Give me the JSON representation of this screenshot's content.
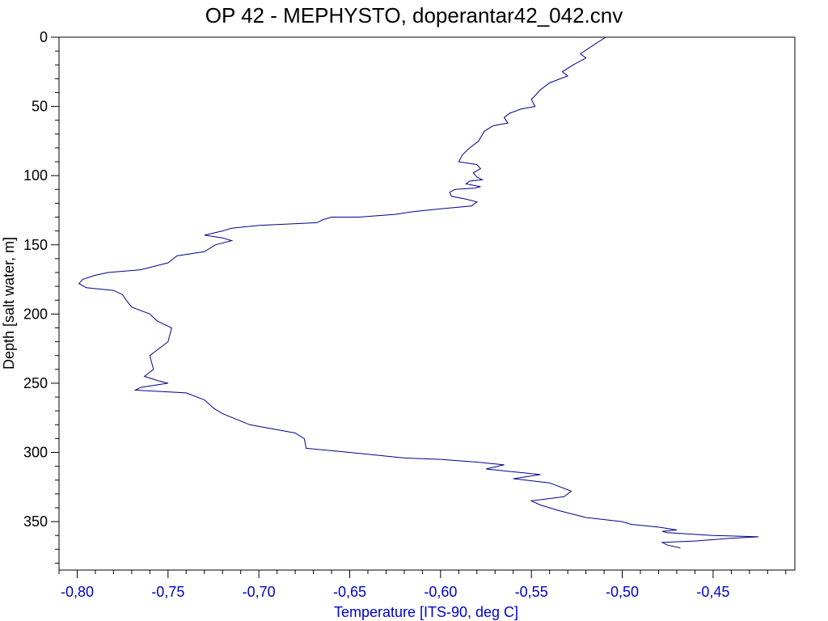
{
  "colors": {
    "profile_line": "#00008b",
    "x_axis_text": "#0000cc",
    "y_axis_text": "#000000",
    "frame": "#000000",
    "background": "#ffffff"
  },
  "chart_data": {
    "type": "line",
    "title": "OP 42 - MEPHYSTO, doperantar42_042.cnv",
    "xlabel": "Temperature [ITS-90, deg C]",
    "ylabel": "Depth [salt water, m]",
    "xlim": [
      -0.81,
      -0.405
    ],
    "ylim": [
      0,
      385
    ],
    "y_inverted": true,
    "grid": false,
    "xticks": [
      -0.8,
      -0.75,
      -0.7,
      -0.65,
      -0.6,
      -0.55,
      -0.5,
      -0.45
    ],
    "xtick_labels": [
      "-0,80",
      "-0,75",
      "-0,70",
      "-0,65",
      "-0,60",
      "-0,55",
      "-0,50",
      "-0,45"
    ],
    "yticks": [
      0,
      50,
      100,
      150,
      200,
      250,
      300,
      350
    ],
    "ytick_labels": [
      "0",
      "50",
      "100",
      "150",
      "200",
      "250",
      "300",
      "350"
    ],
    "series": [
      {
        "x": [
          -0.509,
          -0.515,
          -0.523,
          -0.52,
          -0.527,
          -0.533,
          -0.53,
          -0.54,
          -0.545,
          -0.55,
          -0.548,
          -0.556,
          -0.562,
          -0.565,
          -0.563,
          -0.571,
          -0.576,
          -0.579,
          -0.584,
          -0.588,
          -0.59,
          -0.58,
          -0.578,
          -0.582,
          -0.58,
          -0.577,
          -0.584,
          -0.586,
          -0.578,
          -0.581,
          -0.592,
          -0.595,
          -0.594,
          -0.586,
          -0.58,
          -0.583,
          -0.6,
          -0.615,
          -0.625,
          -0.645,
          -0.66,
          -0.665,
          -0.668,
          -0.7,
          -0.715,
          -0.72,
          -0.73,
          -0.72,
          -0.715,
          -0.724,
          -0.73,
          -0.745,
          -0.75,
          -0.765,
          -0.783,
          -0.79,
          -0.797,
          -0.799,
          -0.795,
          -0.78,
          -0.775,
          -0.773,
          -0.77,
          -0.76,
          -0.756,
          -0.748,
          -0.75,
          -0.76,
          -0.758,
          -0.763,
          -0.756,
          -0.75,
          -0.765,
          -0.768,
          -0.74,
          -0.73,
          -0.725,
          -0.72,
          -0.705,
          -0.68,
          -0.675,
          -0.674,
          -0.65,
          -0.62,
          -0.6,
          -0.58,
          -0.565,
          -0.575,
          -0.545,
          -0.56,
          -0.54,
          -0.528,
          -0.532,
          -0.55,
          -0.545,
          -0.535,
          -0.52,
          -0.5,
          -0.495,
          -0.48,
          -0.47,
          -0.478,
          -0.475,
          -0.45,
          -0.425,
          -0.44,
          -0.46,
          -0.478,
          -0.475,
          -0.468
        ],
        "y": [
          0,
          5,
          12,
          15,
          20,
          25,
          28,
          33,
          38,
          45,
          50,
          52,
          55,
          58,
          62,
          64,
          68,
          75,
          80,
          85,
          90,
          92,
          95,
          98,
          101,
          103,
          104,
          106,
          108,
          109,
          110,
          112,
          115,
          117,
          119,
          122,
          124,
          126,
          128,
          130,
          130,
          132,
          134,
          136,
          138,
          140,
          143,
          145,
          147,
          150,
          155,
          158,
          163,
          168,
          170,
          172,
          175,
          178,
          181,
          183,
          186,
          190,
          195,
          200,
          205,
          210,
          220,
          230,
          240,
          245,
          248,
          250,
          253,
          255,
          257,
          262,
          268,
          272,
          280,
          286,
          290,
          297,
          300,
          304,
          305,
          307,
          309,
          312,
          316,
          319,
          322,
          328,
          332,
          335,
          338,
          342,
          347,
          350,
          352,
          354,
          356,
          357,
          358,
          360,
          361,
          362,
          364,
          365,
          367,
          369
        ]
      }
    ]
  }
}
